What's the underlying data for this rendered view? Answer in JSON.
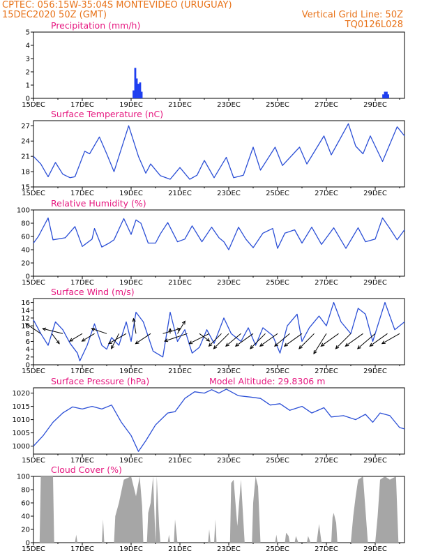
{
  "header": {
    "line1_left": "CPTEC:   056:15W-35:04S   MONTEVIDEO (URUGUAY)",
    "line2_left": "15DEC2020 50Z (GMT)",
    "line2_right": "Vertical Grid Line: 50Z",
    "line3_right": "TQ0126L028"
  },
  "colors": {
    "header": "#e8731a",
    "panel_title": "#e6177f",
    "line": "#2b4fd6",
    "bar": "#1f3ff0",
    "cloud": "#a6a6a6",
    "wind_arrow": "#000000"
  },
  "chart_data": [
    {
      "type": "bar",
      "title": "Precipitation (mm/h)",
      "x_ticks": [
        "15DEC",
        "17DEC",
        "19DEC",
        "21DEC",
        "23DEC",
        "25DEC",
        "27DEC",
        "29DEC"
      ],
      "ylim": [
        0,
        5
      ],
      "yticks": [
        0,
        1,
        2,
        3,
        4,
        5
      ],
      "x_day_range": [
        15,
        30.2
      ],
      "points": [
        [
          19.1,
          0.6
        ],
        [
          19.17,
          2.3
        ],
        [
          19.23,
          1.5
        ],
        [
          19.3,
          1.1
        ],
        [
          19.37,
          1.2
        ],
        [
          19.43,
          0.5
        ],
        [
          29.33,
          0.3
        ],
        [
          29.4,
          0.5
        ],
        [
          29.47,
          0.5
        ],
        [
          29.53,
          0.3
        ]
      ]
    },
    {
      "type": "line",
      "title": "Surface Temperature (nC)",
      "x_ticks": [
        "15DEC",
        "17DEC",
        "19DEC",
        "21DEC",
        "23DEC",
        "25DEC",
        "27DEC",
        "29DEC"
      ],
      "ylim": [
        15,
        28
      ],
      "yticks": [
        15,
        18,
        21,
        24,
        27
      ],
      "x_day_range": [
        15,
        30.2
      ],
      "points": [
        [
          15.0,
          21.0
        ],
        [
          15.3,
          19.5
        ],
        [
          15.6,
          17.0
        ],
        [
          15.9,
          19.8
        ],
        [
          16.2,
          17.5
        ],
        [
          16.5,
          16.8
        ],
        [
          16.7,
          17.0
        ],
        [
          17.1,
          22.0
        ],
        [
          17.3,
          21.5
        ],
        [
          17.7,
          24.8
        ],
        [
          18.0,
          21.5
        ],
        [
          18.3,
          18.0
        ],
        [
          18.9,
          27.0
        ],
        [
          19.3,
          21.0
        ],
        [
          19.6,
          17.7
        ],
        [
          19.8,
          19.5
        ],
        [
          20.2,
          17.2
        ],
        [
          20.6,
          16.5
        ],
        [
          21.0,
          18.8
        ],
        [
          21.4,
          16.5
        ],
        [
          21.7,
          17.3
        ],
        [
          22.0,
          20.2
        ],
        [
          22.4,
          16.8
        ],
        [
          22.9,
          20.8
        ],
        [
          23.2,
          16.8
        ],
        [
          23.6,
          17.3
        ],
        [
          24.0,
          22.8
        ],
        [
          24.3,
          18.3
        ],
        [
          24.9,
          22.8
        ],
        [
          25.2,
          19.2
        ],
        [
          25.9,
          22.8
        ],
        [
          26.2,
          19.5
        ],
        [
          26.9,
          25.0
        ],
        [
          27.2,
          21.3
        ],
        [
          27.9,
          27.4
        ],
        [
          28.2,
          23.0
        ],
        [
          28.5,
          21.5
        ],
        [
          28.8,
          25.0
        ],
        [
          29.3,
          20.0
        ],
        [
          29.9,
          26.8
        ],
        [
          30.2,
          25.0
        ]
      ]
    },
    {
      "type": "line",
      "title": "Relative Humidity (%)",
      "x_ticks": [
        "15DEC",
        "17DEC",
        "19DEC",
        "21DEC",
        "23DEC",
        "25DEC",
        "27DEC",
        "29DEC"
      ],
      "ylim": [
        0,
        100
      ],
      "yticks": [
        0,
        20,
        40,
        60,
        80,
        100
      ],
      "x_day_range": [
        15,
        30.2
      ],
      "points": [
        [
          15.0,
          50
        ],
        [
          15.2,
          60
        ],
        [
          15.6,
          88
        ],
        [
          15.8,
          55
        ],
        [
          16.3,
          58
        ],
        [
          16.7,
          75
        ],
        [
          17.0,
          45
        ],
        [
          17.4,
          56
        ],
        [
          17.5,
          72
        ],
        [
          17.8,
          44
        ],
        [
          18.1,
          50
        ],
        [
          18.3,
          55
        ],
        [
          18.7,
          87
        ],
        [
          19.0,
          63
        ],
        [
          19.2,
          85
        ],
        [
          19.4,
          80
        ],
        [
          19.7,
          50
        ],
        [
          20.0,
          50
        ],
        [
          20.2,
          64
        ],
        [
          20.5,
          81
        ],
        [
          20.9,
          52
        ],
        [
          21.2,
          56
        ],
        [
          21.5,
          76
        ],
        [
          21.9,
          52
        ],
        [
          22.3,
          74
        ],
        [
          22.6,
          58
        ],
        [
          22.8,
          52
        ],
        [
          23.0,
          40
        ],
        [
          23.4,
          74
        ],
        [
          23.7,
          56
        ],
        [
          24.0,
          43
        ],
        [
          24.4,
          65
        ],
        [
          24.8,
          72
        ],
        [
          25.0,
          42
        ],
        [
          25.3,
          65
        ],
        [
          25.7,
          70
        ],
        [
          26.0,
          50
        ],
        [
          26.4,
          74
        ],
        [
          26.8,
          48
        ],
        [
          27.3,
          73
        ],
        [
          27.8,
          42
        ],
        [
          28.3,
          73
        ],
        [
          28.6,
          52
        ],
        [
          29.0,
          56
        ],
        [
          29.3,
          88
        ],
        [
          29.6,
          72
        ],
        [
          29.9,
          55
        ],
        [
          30.2,
          70
        ]
      ]
    },
    {
      "type": "line",
      "title": "Surface Wind (m/s)",
      "x_ticks": [
        "15DEC",
        "17DEC",
        "19DEC",
        "21DEC",
        "23DEC",
        "25DEC",
        "27DEC",
        "29DEC"
      ],
      "ylim": [
        0,
        17
      ],
      "yticks": [
        0,
        2,
        4,
        6,
        8,
        10,
        12,
        14,
        16
      ],
      "x_day_range": [
        15,
        30.2
      ],
      "points": [
        [
          15.0,
          11.5
        ],
        [
          15.3,
          8.0
        ],
        [
          15.6,
          5.0
        ],
        [
          15.9,
          11.0
        ],
        [
          16.2,
          9.0
        ],
        [
          16.5,
          5.5
        ],
        [
          16.8,
          3.0
        ],
        [
          16.9,
          1.0
        ],
        [
          17.2,
          5.0
        ],
        [
          17.5,
          10.5
        ],
        [
          17.8,
          5.0
        ],
        [
          18.0,
          4.0
        ],
        [
          18.2,
          7.0
        ],
        [
          18.5,
          5.0
        ],
        [
          18.8,
          11.0
        ],
        [
          19.0,
          6.0
        ],
        [
          19.2,
          13.5
        ],
        [
          19.5,
          11.0
        ],
        [
          19.9,
          3.5
        ],
        [
          20.3,
          2.0
        ],
        [
          20.6,
          13.5
        ],
        [
          20.9,
          6.0
        ],
        [
          21.2,
          9.0
        ],
        [
          21.5,
          3.0
        ],
        [
          21.8,
          4.5
        ],
        [
          22.1,
          9.0
        ],
        [
          22.4,
          5.5
        ],
        [
          22.8,
          12.0
        ],
        [
          23.1,
          8.0
        ],
        [
          23.5,
          6.0
        ],
        [
          23.8,
          9.5
        ],
        [
          24.1,
          5.0
        ],
        [
          24.4,
          9.5
        ],
        [
          24.8,
          7.5
        ],
        [
          25.1,
          3.0
        ],
        [
          25.4,
          10.0
        ],
        [
          25.8,
          13.0
        ],
        [
          26.0,
          6.0
        ],
        [
          26.3,
          9.5
        ],
        [
          26.7,
          12.5
        ],
        [
          27.0,
          10.0
        ],
        [
          27.3,
          16.0
        ],
        [
          27.6,
          11.0
        ],
        [
          28.0,
          8.0
        ],
        [
          28.3,
          14.5
        ],
        [
          28.6,
          13.0
        ],
        [
          28.9,
          6.0
        ],
        [
          29.1,
          10.0
        ],
        [
          29.4,
          16.0
        ],
        [
          29.8,
          9.0
        ],
        [
          30.2,
          11.0
        ]
      ]
    },
    {
      "type": "line",
      "title": "Surface Pressure (hPa)",
      "annotation": "Model Altitude: 29.8306  m",
      "x_ticks": [
        "15DEC",
        "17DEC",
        "19DEC",
        "21DEC",
        "23DEC",
        "25DEC",
        "27DEC",
        "29DEC"
      ],
      "ylim": [
        997,
        1022
      ],
      "yticks": [
        1000,
        1005,
        1010,
        1015,
        1020
      ],
      "x_day_range": [
        15,
        30.2
      ],
      "points": [
        [
          15.0,
          1000
        ],
        [
          15.4,
          1004.0
        ],
        [
          15.8,
          1009.0
        ],
        [
          16.2,
          1012.5
        ],
        [
          16.6,
          1014.8
        ],
        [
          17.0,
          1014.0
        ],
        [
          17.4,
          1015.0
        ],
        [
          17.8,
          1014.0
        ],
        [
          18.2,
          1015.5
        ],
        [
          18.6,
          1009.0
        ],
        [
          19.0,
          1004.0
        ],
        [
          19.3,
          998.0
        ],
        [
          19.6,
          1002.0
        ],
        [
          20.0,
          1008.0
        ],
        [
          20.5,
          1012.5
        ],
        [
          20.8,
          1013.0
        ],
        [
          21.2,
          1018.0
        ],
        [
          21.6,
          1020.5
        ],
        [
          22.0,
          1020.0
        ],
        [
          22.3,
          1021.3
        ],
        [
          22.6,
          1020.0
        ],
        [
          22.9,
          1021.5
        ],
        [
          23.4,
          1019.0
        ],
        [
          23.9,
          1018.5
        ],
        [
          24.3,
          1018.0
        ],
        [
          24.7,
          1015.5
        ],
        [
          25.1,
          1016.0
        ],
        [
          25.5,
          1013.5
        ],
        [
          26.0,
          1015.0
        ],
        [
          26.4,
          1012.5
        ],
        [
          26.9,
          1014.5
        ],
        [
          27.2,
          1011.0
        ],
        [
          27.7,
          1011.5
        ],
        [
          28.2,
          1010.0
        ],
        [
          28.6,
          1012.0
        ],
        [
          28.9,
          1009.0
        ],
        [
          29.2,
          1012.5
        ],
        [
          29.6,
          1011.5
        ],
        [
          30.0,
          1007.0
        ],
        [
          30.2,
          1006.5
        ]
      ]
    },
    {
      "type": "area",
      "title": "Cloud Cover (%)",
      "x_ticks": [
        "15DEC",
        "17DEC",
        "19DEC",
        "21DEC",
        "23DEC",
        "25DEC",
        "27DEC",
        "29DEC"
      ],
      "ylim": [
        0,
        100
      ],
      "yticks": [
        0,
        20,
        40,
        60,
        80,
        100
      ],
      "x_day_range": [
        15,
        30.2
      ],
      "points": [
        [
          15.0,
          0
        ],
        [
          15.25,
          0
        ],
        [
          15.3,
          100
        ],
        [
          15.8,
          100
        ],
        [
          15.85,
          0
        ],
        [
          16.7,
          0
        ],
        [
          16.75,
          12
        ],
        [
          16.8,
          0
        ],
        [
          17.8,
          0
        ],
        [
          17.85,
          35
        ],
        [
          17.9,
          0
        ],
        [
          18.3,
          0
        ],
        [
          18.35,
          40
        ],
        [
          18.5,
          60
        ],
        [
          18.7,
          95
        ],
        [
          19.0,
          100
        ],
        [
          19.2,
          70
        ],
        [
          19.35,
          100
        ],
        [
          19.45,
          55
        ],
        [
          19.5,
          0
        ],
        [
          19.65,
          0
        ],
        [
          19.7,
          45
        ],
        [
          19.8,
          60
        ],
        [
          19.9,
          100
        ],
        [
          20.0,
          0
        ],
        [
          20.05,
          100
        ],
        [
          20.15,
          25
        ],
        [
          20.2,
          0
        ],
        [
          20.5,
          0
        ],
        [
          20.55,
          12
        ],
        [
          20.6,
          0
        ],
        [
          20.75,
          0
        ],
        [
          20.8,
          35
        ],
        [
          20.9,
          0
        ],
        [
          22.15,
          0
        ],
        [
          22.2,
          20
        ],
        [
          22.25,
          0
        ],
        [
          22.4,
          0
        ],
        [
          22.45,
          35
        ],
        [
          22.5,
          0
        ],
        [
          23.05,
          0
        ],
        [
          23.1,
          90
        ],
        [
          23.2,
          95
        ],
        [
          23.35,
          25
        ],
        [
          23.5,
          95
        ],
        [
          23.65,
          0
        ],
        [
          23.95,
          0
        ],
        [
          24.0,
          60
        ],
        [
          24.1,
          100
        ],
        [
          24.2,
          85
        ],
        [
          24.3,
          0
        ],
        [
          24.9,
          0
        ],
        [
          24.95,
          12
        ],
        [
          25.0,
          0
        ],
        [
          25.3,
          0
        ],
        [
          25.35,
          15
        ],
        [
          25.45,
          10
        ],
        [
          25.5,
          0
        ],
        [
          25.7,
          0
        ],
        [
          25.75,
          10
        ],
        [
          25.85,
          0
        ],
        [
          26.2,
          0
        ],
        [
          26.25,
          10
        ],
        [
          26.35,
          0
        ],
        [
          26.6,
          0
        ],
        [
          26.7,
          28
        ],
        [
          26.8,
          0
        ],
        [
          27.2,
          0
        ],
        [
          27.25,
          38
        ],
        [
          27.3,
          45
        ],
        [
          27.4,
          30
        ],
        [
          27.45,
          0
        ],
        [
          28.0,
          0
        ],
        [
          28.1,
          40
        ],
        [
          28.2,
          70
        ],
        [
          28.3,
          95
        ],
        [
          28.5,
          100
        ],
        [
          28.6,
          50
        ],
        [
          28.7,
          0
        ],
        [
          29.0,
          0
        ],
        [
          29.1,
          40
        ],
        [
          29.2,
          95
        ],
        [
          29.4,
          100
        ],
        [
          29.6,
          95
        ],
        [
          29.85,
          100
        ],
        [
          29.95,
          0
        ],
        [
          30.2,
          0
        ]
      ]
    }
  ],
  "wind_vectors": {
    "unit": "m/s",
    "arrows": [
      {
        "day": 15.3,
        "u": -6,
        "v": 4
      },
      {
        "day": 15.75,
        "u": 3,
        "v": -4
      },
      {
        "day": 16.2,
        "u": -8,
        "v": 2
      },
      {
        "day": 17.0,
        "u": -5,
        "v": -3
      },
      {
        "day": 17.5,
        "u": -5,
        "v": -3
      },
      {
        "day": 18.0,
        "u": -6,
        "v": 2
      },
      {
        "day": 18.5,
        "u": -3,
        "v": -6
      },
      {
        "day": 18.8,
        "u": -7,
        "v": -4
      },
      {
        "day": 19.2,
        "u": -1,
        "v": 6
      },
      {
        "day": 19.8,
        "u": -6,
        "v": -4
      },
      {
        "day": 20.3,
        "u": 7,
        "v": 2
      },
      {
        "day": 20.6,
        "u": 0,
        "v": 2
      },
      {
        "day": 20.9,
        "u": 3,
        "v": 5
      },
      {
        "day": 21.3,
        "u": -9,
        "v": -3
      },
      {
        "day": 21.8,
        "u": 4,
        "v": -3
      },
      {
        "day": 22.2,
        "u": -8,
        "v": -4
      },
      {
        "day": 22.7,
        "u": -5,
        "v": -5
      },
      {
        "day": 23.0,
        "u": -6,
        "v": -6
      },
      {
        "day": 23.5,
        "u": -6,
        "v": -5
      },
      {
        "day": 24.0,
        "u": -7,
        "v": -5
      },
      {
        "day": 24.5,
        "u": -6,
        "v": -6
      },
      {
        "day": 25.0,
        "u": -7,
        "v": -5
      },
      {
        "day": 25.5,
        "u": -6,
        "v": -5
      },
      {
        "day": 26.0,
        "u": -7,
        "v": -5
      },
      {
        "day": 26.5,
        "u": -6,
        "v": -6
      },
      {
        "day": 27.0,
        "u": -5,
        "v": -8
      },
      {
        "day": 27.5,
        "u": -7,
        "v": -5
      },
      {
        "day": 28.0,
        "u": -6,
        "v": -6
      },
      {
        "day": 28.5,
        "u": -7,
        "v": -5
      },
      {
        "day": 29.0,
        "u": -7,
        "v": -6
      },
      {
        "day": 29.5,
        "u": -7,
        "v": -5
      },
      {
        "day": 30.0,
        "u": -7,
        "v": -4
      }
    ]
  }
}
